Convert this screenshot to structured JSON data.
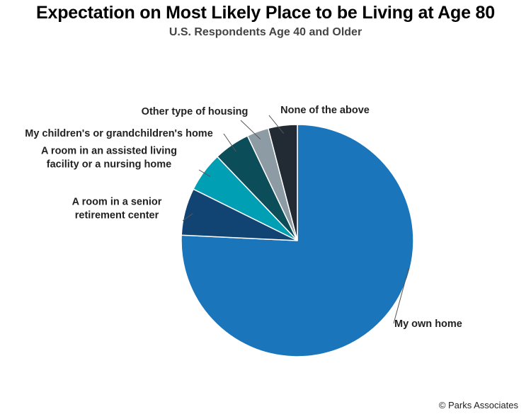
{
  "title": "Expectation on Most Likely Place to be Living at Age 80",
  "subtitle": "U.S. Respondents Age 40 and Older",
  "credit": "© Parks Associates",
  "chart_data": {
    "type": "pie",
    "title": "Expectation on Most Likely Place to be Living at Age 80",
    "subtitle": "U.S. Respondents Age 40 and Older",
    "start": "12 o'clock",
    "direction": "clockwise",
    "slices": [
      {
        "label": "My own home",
        "value": 75,
        "color": "#1b75bb"
      },
      {
        "label": "A room in a senior retirement center",
        "value": 6.5,
        "color": "#124473"
      },
      {
        "label": "A room in an assisted living facility or a nursing home",
        "value": 5.5,
        "color": "#009fb3"
      },
      {
        "label": "My children's or grandchildren's home",
        "value": 5,
        "color": "#0c4d5a"
      },
      {
        "label": "Other type of housing",
        "value": 3,
        "color": "#8d9ba4"
      },
      {
        "label": "None of the above",
        "value": 4,
        "color": "#222a33"
      }
    ],
    "label_lines": [
      [
        "My own home"
      ],
      [
        "A room in a senior",
        "retirement center"
      ],
      [
        "A room in an assisted living",
        "facility or a nursing home"
      ],
      [
        "My children's or grandchildren's home"
      ],
      [
        "Other type of housing"
      ],
      [
        "None of the above"
      ]
    ]
  }
}
